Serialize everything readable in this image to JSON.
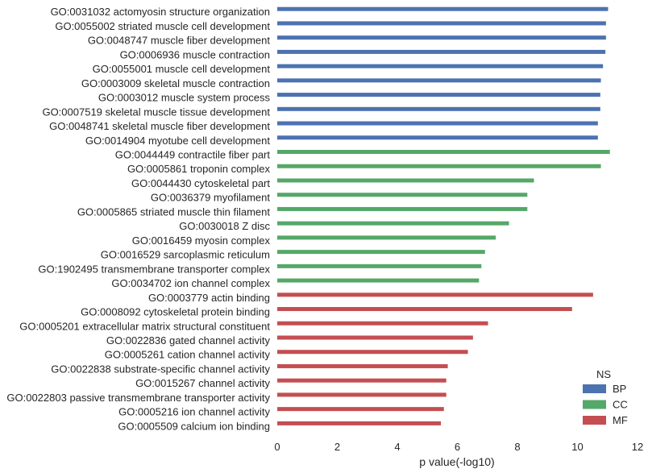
{
  "chart_data": {
    "type": "bar",
    "orientation": "horizontal",
    "xlabel": "p value(-log10)",
    "xlim": [
      0,
      12
    ],
    "xticks": [
      0,
      2,
      4,
      6,
      8,
      10,
      12
    ],
    "grid": false,
    "legend": {
      "title": "NS",
      "placement": "bottom-right",
      "entries": [
        {
          "name": "BP",
          "color": "#4c72b0"
        },
        {
          "name": "CC",
          "color": "#55a868"
        },
        {
          "name": "MF",
          "color": "#c44e52"
        }
      ]
    },
    "categories": [
      {
        "label": "GO:0031032 actomyosin structure organization",
        "value": 11.02,
        "group": "BP"
      },
      {
        "label": "GO:0055002 striated muscle cell development",
        "value": 10.95,
        "group": "BP"
      },
      {
        "label": "GO:0048747 muscle fiber development",
        "value": 10.95,
        "group": "BP"
      },
      {
        "label": "GO:0006936 muscle contraction",
        "value": 10.93,
        "group": "BP"
      },
      {
        "label": "GO:0055001 muscle cell development",
        "value": 10.85,
        "group": "BP"
      },
      {
        "label": "GO:0003009 skeletal muscle contraction",
        "value": 10.78,
        "group": "BP"
      },
      {
        "label": "GO:0003012 muscle system process",
        "value": 10.76,
        "group": "BP"
      },
      {
        "label": "GO:0007519 skeletal muscle tissue development",
        "value": 10.76,
        "group": "BP"
      },
      {
        "label": "GO:0048741 skeletal muscle fiber development",
        "value": 10.68,
        "group": "BP"
      },
      {
        "label": "GO:0014904 myotube cell development",
        "value": 10.68,
        "group": "BP"
      },
      {
        "label": "GO:0044449 contractile fiber part",
        "value": 11.08,
        "group": "CC"
      },
      {
        "label": "GO:0005861 troponin complex",
        "value": 10.78,
        "group": "CC"
      },
      {
        "label": "GO:0044430 cytoskeletal part",
        "value": 8.55,
        "group": "CC"
      },
      {
        "label": "GO:0036379 myofilament",
        "value": 8.33,
        "group": "CC"
      },
      {
        "label": "GO:0005865 striated muscle thin filament",
        "value": 8.33,
        "group": "CC"
      },
      {
        "label": "GO:0030018 Z disc",
        "value": 7.72,
        "group": "CC"
      },
      {
        "label": "GO:0016459 myosin complex",
        "value": 7.28,
        "group": "CC"
      },
      {
        "label": "GO:0016529 sarcoplasmic reticulum",
        "value": 6.92,
        "group": "CC"
      },
      {
        "label": "GO:1902495 transmembrane transporter complex",
        "value": 6.8,
        "group": "CC"
      },
      {
        "label": "GO:0034702 ion channel complex",
        "value": 6.72,
        "group": "CC"
      },
      {
        "label": "GO:0003779 actin binding",
        "value": 10.52,
        "group": "MF"
      },
      {
        "label": "GO:0008092 cytoskeletal protein binding",
        "value": 9.82,
        "group": "MF"
      },
      {
        "label": "GO:0005201 extracellular matrix structural constituent",
        "value": 7.02,
        "group": "MF"
      },
      {
        "label": "GO:0022836 gated channel activity",
        "value": 6.52,
        "group": "MF"
      },
      {
        "label": "GO:0005261 cation channel activity",
        "value": 6.35,
        "group": "MF"
      },
      {
        "label": "GO:0022838 substrate-specific channel activity",
        "value": 5.68,
        "group": "MF"
      },
      {
        "label": "GO:0015267 channel activity",
        "value": 5.63,
        "group": "MF"
      },
      {
        "label": "GO:0022803 passive transmembrane transporter activity",
        "value": 5.63,
        "group": "MF"
      },
      {
        "label": "GO:0005216 ion channel activity",
        "value": 5.55,
        "group": "MF"
      },
      {
        "label": "GO:0005509 calcium ion binding",
        "value": 5.45,
        "group": "MF"
      }
    ]
  }
}
